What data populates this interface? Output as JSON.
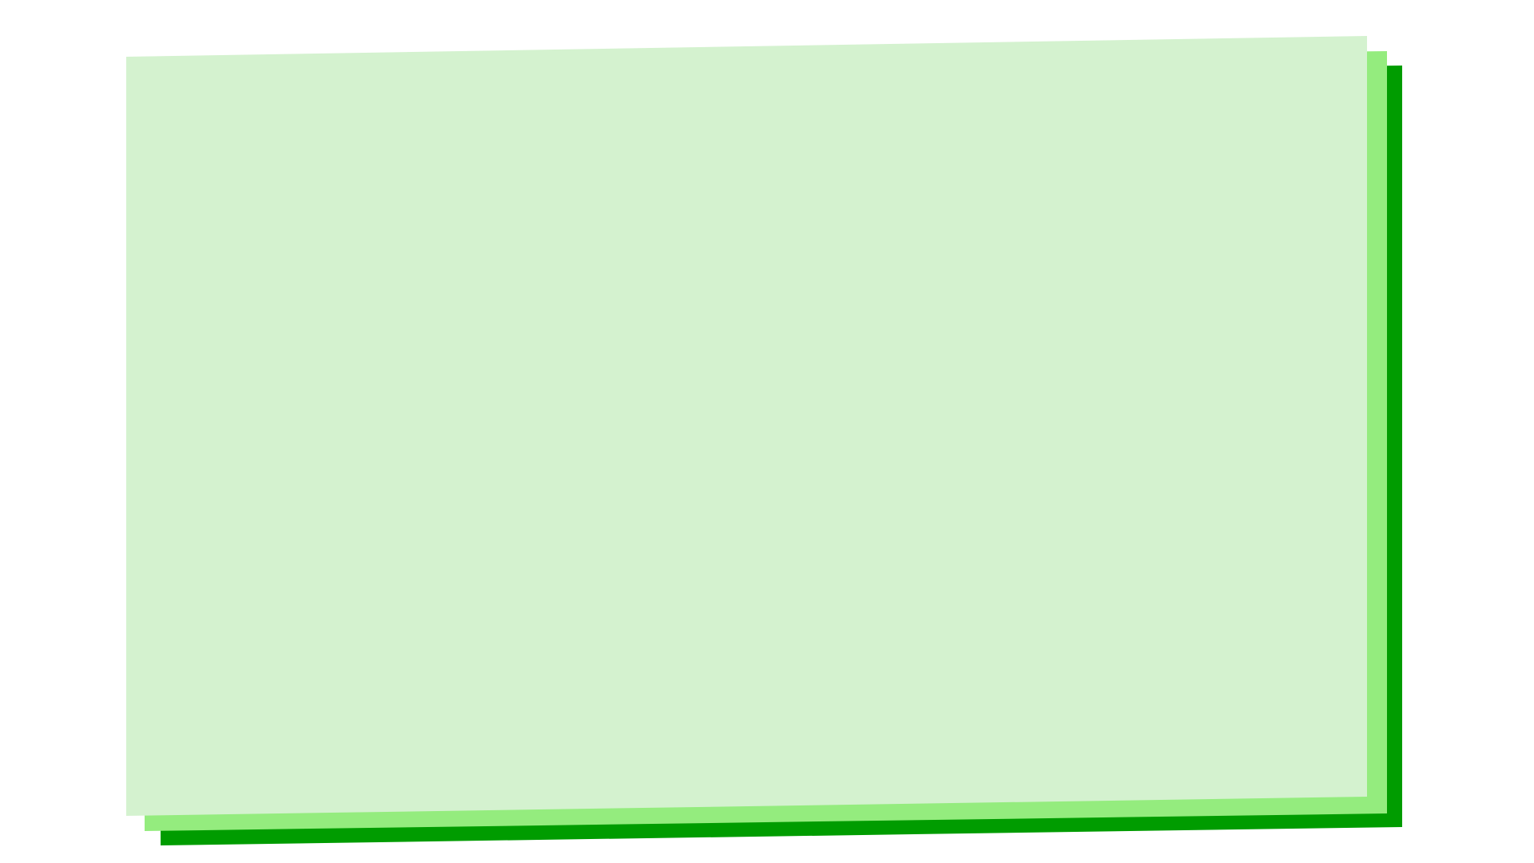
{
  "colors": {
    "background": "#ffffff",
    "card_back": "#009c00",
    "card_middle": "#94ec7e",
    "card_front": "#d4f2cf"
  },
  "cards": [
    {
      "name": "back-card",
      "color_key": "card_back"
    },
    {
      "name": "middle-card",
      "color_key": "card_middle"
    },
    {
      "name": "front-card",
      "color_key": "card_front"
    }
  ]
}
